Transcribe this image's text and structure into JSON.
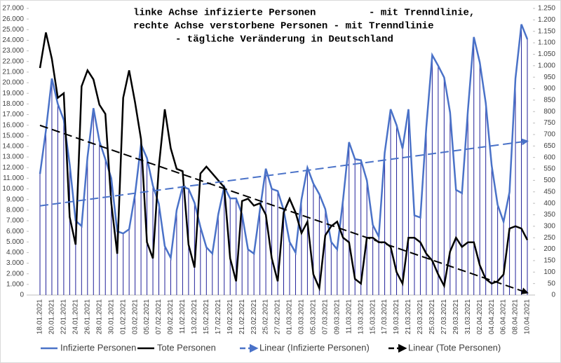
{
  "chart_data": {
    "type": "line",
    "title_lines": [
      "linke Achse infizierte Personen         - mit Trenndlinie,",
      "rechte Achse verstorbene Personen - mit Trenndlinie",
      "- tägliche Veränderung in Deutschland"
    ],
    "categories": [
      "18.01.2021",
      null,
      "20.01.2021",
      null,
      "22.01.2021",
      null,
      "24.01.2021",
      null,
      "26.01.2021",
      null,
      "28.01.2021",
      null,
      "30.01.2021",
      null,
      "01.02.2021",
      null,
      "03.02.2021",
      null,
      "05.02.2021",
      null,
      "07.02.2021",
      null,
      "09.02.2021",
      null,
      "11.02.2021",
      null,
      "13.02.2021",
      null,
      "15.02.2021",
      null,
      "17.02.2021",
      null,
      "19.02.2021",
      null,
      "21.02.2021",
      null,
      "23.02.2021",
      null,
      "25.02.2021",
      null,
      "27.02.2021",
      null,
      "01.03.2021",
      null,
      "03.03.2021",
      null,
      "05.03.2021",
      null,
      "07.03.2021",
      null,
      "09.03.2021",
      null,
      "11.03.2021",
      null,
      "13.03.2021",
      null,
      "15.03.2021",
      null,
      "17.03.2021",
      null,
      "19.03.2021",
      null,
      "21.03.2021",
      null,
      "23.03.2021",
      null,
      "25.03.2021",
      null,
      "27.03.2021",
      null,
      "29.03.2021",
      null,
      "31.03.2021",
      null,
      "02.04.2021",
      null,
      "04.04.2021",
      null,
      "06.04.2021",
      null,
      "08.04.2021",
      null,
      "10.04.2021"
    ],
    "series": [
      {
        "name": "Infizierte Personen",
        "color": "#4a72c8",
        "drop_line_color": "#22229a",
        "axis": "y",
        "values": [
          11400,
          15500,
          20400,
          18000,
          16500,
          12300,
          7000,
          6500,
          13000,
          17600,
          14500,
          12800,
          11000,
          6000,
          5800,
          6200,
          9500,
          14200,
          12900,
          10300,
          8600,
          4600,
          3500,
          8000,
          10200,
          10000,
          8700,
          6400,
          4500,
          3900,
          7600,
          10200,
          9100,
          9100,
          7600,
          4300,
          3900,
          8000,
          11900,
          10000,
          9800,
          8000,
          5000,
          4000,
          9000,
          12000,
          10500,
          9500,
          8100,
          5000,
          4300,
          9000,
          14400,
          12800,
          12700,
          10800,
          6600,
          5500,
          13400,
          17500,
          16000,
          13800,
          17500,
          7500,
          7300,
          15800,
          22600,
          21600,
          20500,
          17200,
          9900,
          9600,
          17400,
          24300,
          21900,
          18100,
          12200,
          8500,
          6900,
          9700,
          20400,
          25500,
          24100
        ]
      },
      {
        "name": "Tote Personen",
        "color": "#000000",
        "axis": "y2",
        "values": [
          990,
          1145,
          1030,
          860,
          880,
          340,
          220,
          910,
          980,
          940,
          830,
          790,
          400,
          180,
          860,
          980,
          840,
          680,
          230,
          160,
          560,
          810,
          640,
          550,
          540,
          220,
          120,
          530,
          560,
          530,
          500,
          470,
          160,
          60,
          410,
          420,
          390,
          400,
          350,
          160,
          60,
          360,
          420,
          360,
          270,
          320,
          90,
          30,
          260,
          300,
          320,
          250,
          230,
          70,
          50,
          250,
          250,
          230,
          230,
          210,
          100,
          50,
          250,
          250,
          230,
          180,
          150,
          90,
          40,
          190,
          250,
          210,
          230,
          230,
          130,
          70,
          50,
          60,
          90,
          290,
          300,
          290,
          240
        ]
      }
    ],
    "trendlines": [
      {
        "name": "Linear (Infizierte Personen)",
        "color": "#4a72c8",
        "axis": "y",
        "from": 8400,
        "to": 14500
      },
      {
        "name": "Linear (Tote Personen)",
        "color": "#000000",
        "axis": "y2",
        "from": 740,
        "to": 10
      }
    ],
    "ylim": [
      0,
      27000
    ],
    "yticks": [
      0,
      {
        "value": 1000,
        "label": "1.000"
      },
      {
        "value": 2000,
        "label": "2.000"
      },
      {
        "value": 3000,
        "label": "3.000"
      },
      {
        "value": 4000,
        "label": "4.000"
      },
      {
        "value": 5000,
        "label": "5.000"
      },
      {
        "value": 6000,
        "label": "6.000"
      },
      {
        "value": 7000,
        "label": "7.000"
      },
      {
        "value": 8000,
        "label": "8.000"
      },
      {
        "value": 9000,
        "label": "9.000"
      },
      {
        "value": 10000,
        "label": "10.000"
      },
      {
        "value": 11000,
        "label": "11.000"
      },
      {
        "value": 12000,
        "label": "12.000"
      },
      {
        "value": 13000,
        "label": "13.000"
      },
      {
        "value": 14000,
        "label": "14.000"
      },
      {
        "value": 15000,
        "label": "15.000"
      },
      {
        "value": 16000,
        "label": "16.000"
      },
      {
        "value": 17000,
        "label": "17.000"
      },
      {
        "value": 18000,
        "label": "18.000"
      },
      {
        "value": 19000,
        "label": "19.000"
      },
      {
        "value": 20000,
        "label": "20.000"
      },
      {
        "value": 21000,
        "label": "21.000"
      },
      {
        "value": 22000,
        "label": "22.000"
      },
      {
        "value": 23000,
        "label": "23.000"
      },
      {
        "value": 24000,
        "label": "24.000"
      },
      {
        "value": 25000,
        "label": "25.000"
      },
      {
        "value": 26000,
        "label": "26.000"
      },
      {
        "value": 27000,
        "label": "27.000"
      }
    ],
    "y2lim": [
      0,
      1250
    ],
    "y2ticks": [
      0,
      50,
      100,
      150,
      200,
      250,
      300,
      350,
      400,
      450,
      500,
      550,
      600,
      650,
      700,
      750,
      800,
      850,
      900,
      950,
      {
        "value": 1000,
        "label": "1.000"
      },
      {
        "value": 1050,
        "label": "1.050"
      },
      {
        "value": 1100,
        "label": "1.100"
      },
      {
        "value": 1150,
        "label": "1.150"
      },
      {
        "value": 1200,
        "label": "1.200"
      },
      {
        "value": 1250,
        "label": "1.250"
      }
    ],
    "grid": false
  }
}
